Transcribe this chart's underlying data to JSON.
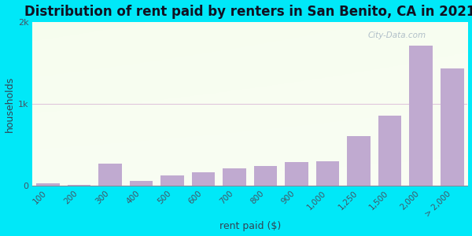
{
  "title": "Distribution of rent paid by renters in San Benito, CA in 2021",
  "xlabel": "rent paid ($)",
  "ylabel": "households",
  "categories": [
    "100",
    "200",
    "300",
    "400",
    "500",
    "600",
    "700",
    "800",
    "900",
    "1,000",
    "1,250",
    "1,500",
    "2,000",
    "> 2,000"
  ],
  "values": [
    25,
    8,
    270,
    55,
    125,
    160,
    210,
    240,
    290,
    300,
    610,
    860,
    1710,
    1430
  ],
  "bar_color": "#c0aad0",
  "background_color": "#00e8f8",
  "plot_bg_colors": [
    "#c8e8b0",
    "#f0fae8"
  ],
  "ylim": [
    0,
    2000
  ],
  "ytick_labels": [
    "0",
    "1k",
    "2k"
  ],
  "ytick_values": [
    0,
    1000,
    2000
  ],
  "title_fontsize": 12,
  "axis_label_fontsize": 9,
  "tick_fontsize": 8,
  "watermark": "City-Data.com",
  "bar_width": 0.75
}
